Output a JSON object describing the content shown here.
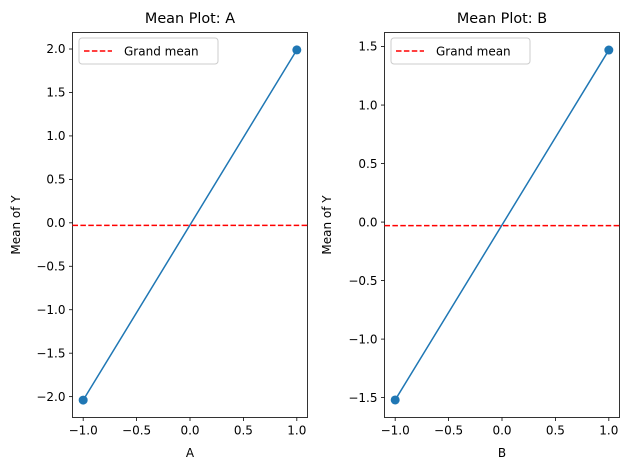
{
  "chart_data": [
    {
      "type": "line",
      "title": "Mean Plot: A",
      "xlabel": "A",
      "ylabel": "Mean of Y",
      "x": [
        -1.0,
        1.0
      ],
      "series": [
        {
          "values": [
            -2.04,
            1.99
          ],
          "color": "#1f77b4",
          "marker": "circle"
        }
      ],
      "reference_lines": [
        {
          "name": "Grand mean",
          "y": -0.03,
          "color": "#ff0000",
          "style": "dashed"
        }
      ],
      "xlim": [
        -1.1,
        1.1
      ],
      "ylim": [
        -2.24,
        2.19
      ],
      "xticks": [
        -1.0,
        -0.5,
        0.0,
        0.5,
        1.0
      ],
      "xtick_labels": [
        "−1.0",
        "−0.5",
        "0.0",
        "0.5",
        "1.0"
      ],
      "yticks": [
        -2.0,
        -1.5,
        -1.0,
        -0.5,
        0.0,
        0.5,
        1.0,
        1.5,
        2.0
      ],
      "ytick_labels": [
        "−2.0",
        "−1.5",
        "−1.0",
        "−0.5",
        "0.0",
        "0.5",
        "1.0",
        "1.5",
        "2.0"
      ],
      "legend": {
        "position": "top-left",
        "entries": [
          "Grand mean"
        ]
      },
      "grid": false
    },
    {
      "type": "line",
      "title": "Mean Plot: B",
      "xlabel": "B",
      "ylabel": "Mean of Y",
      "x": [
        -1.0,
        1.0
      ],
      "series": [
        {
          "values": [
            -1.52,
            1.47
          ],
          "color": "#1f77b4",
          "marker": "circle"
        }
      ],
      "reference_lines": [
        {
          "name": "Grand mean",
          "y": -0.03,
          "color": "#ff0000",
          "style": "dashed"
        }
      ],
      "xlim": [
        -1.1,
        1.1
      ],
      "ylim": [
        -1.67,
        1.62
      ],
      "xticks": [
        -1.0,
        -0.5,
        0.0,
        0.5,
        1.0
      ],
      "xtick_labels": [
        "−1.0",
        "−0.5",
        "0.0",
        "0.5",
        "1.0"
      ],
      "yticks": [
        -1.5,
        -1.0,
        -0.5,
        0.0,
        0.5,
        1.0,
        1.5
      ],
      "ytick_labels": [
        "−1.5",
        "−1.0",
        "−0.5",
        "0.0",
        "0.5",
        "1.0",
        "1.5"
      ],
      "legend": {
        "position": "top-left",
        "entries": [
          "Grand mean"
        ]
      },
      "grid": false
    }
  ]
}
